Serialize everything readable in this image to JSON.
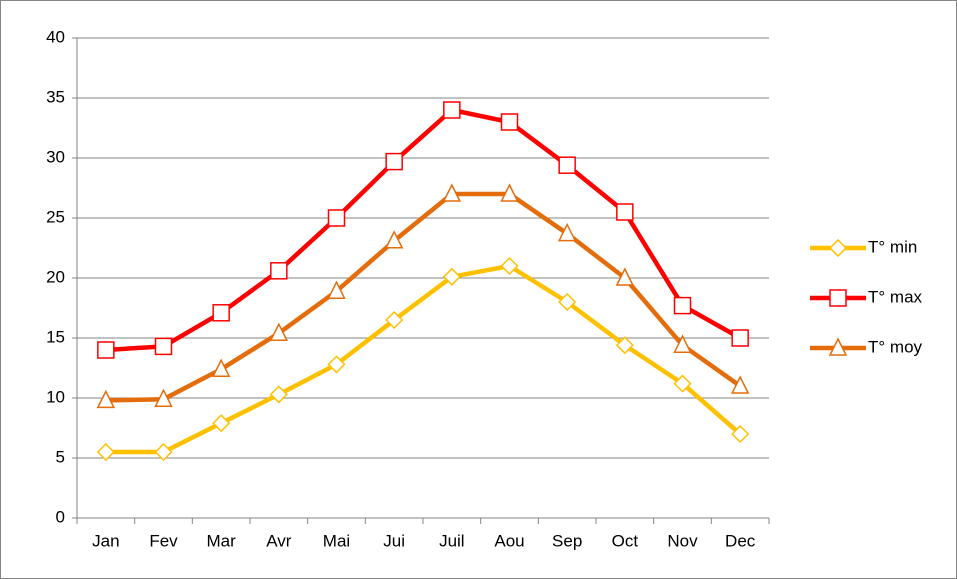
{
  "chart_data": {
    "type": "line",
    "categories": [
      "Jan",
      "Fev",
      "Mar",
      "Avr",
      "Mai",
      "Jui",
      "Juil",
      "Aou",
      "Sep",
      "Oct",
      "Nov",
      "Dec"
    ],
    "series": [
      {
        "name": "T° min",
        "color": "#FFC000",
        "marker": "diamond",
        "values": [
          5.5,
          5.5,
          7.9,
          10.3,
          12.8,
          16.5,
          20.1,
          21,
          18,
          14.4,
          11.2,
          7
        ]
      },
      {
        "name": "T° max",
        "color": "#FF0000",
        "marker": "square",
        "values": [
          14,
          14.3,
          17.1,
          20.6,
          25,
          29.7,
          34,
          33,
          29.4,
          25.5,
          17.7,
          15
        ]
      },
      {
        "name": "T° moy",
        "color": "#E46C0A",
        "marker": "triangle",
        "values": [
          9.8,
          9.9,
          12.4,
          15.4,
          18.9,
          23.1,
          27,
          27,
          23.7,
          20,
          14.4,
          11
        ]
      }
    ],
    "ylim": [
      0,
      40
    ],
    "yticks": [
      0,
      5,
      10,
      15,
      20,
      25,
      30,
      35,
      40
    ],
    "grid": true,
    "legend": "right"
  }
}
